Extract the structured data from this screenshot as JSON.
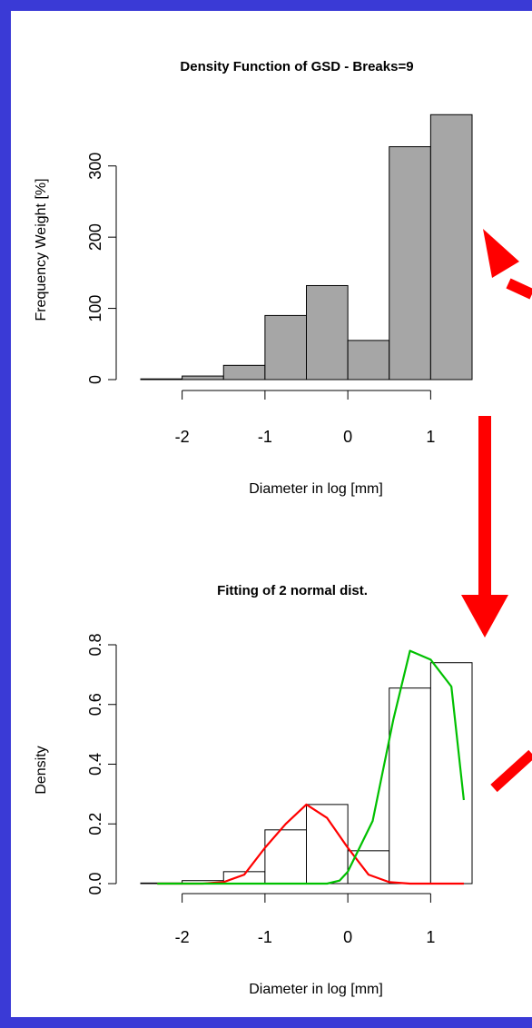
{
  "colors": {
    "frame": "#3a3ad6",
    "bar_fill": "#a6a6a6",
    "arrow": "#ff0000",
    "curve_red": "#ff0000",
    "curve_green": "#00c000"
  },
  "chart_data": [
    {
      "type": "bar",
      "title": "Density Function of GSD - Breaks=9",
      "xlabel": "Diameter in log [mm]",
      "ylabel": "Frequency Weight [%]",
      "x_ticks": [
        "-2",
        "-1",
        "0",
        "1"
      ],
      "y_ticks": [
        "0",
        "100",
        "200",
        "300"
      ],
      "xlim": [
        -2.5,
        1.5
      ],
      "ylim": [
        0,
        380
      ],
      "bins": [
        {
          "x0": -2.5,
          "x1": -2.0,
          "value": 1
        },
        {
          "x0": -2.0,
          "x1": -1.5,
          "value": 5
        },
        {
          "x0": -1.5,
          "x1": -1.0,
          "value": 20
        },
        {
          "x0": -1.0,
          "x1": -0.5,
          "value": 90
        },
        {
          "x0": -0.5,
          "x1": 0.0,
          "value": 132
        },
        {
          "x0": 0.0,
          "x1": 0.5,
          "value": 55
        },
        {
          "x0": 0.5,
          "x1": 1.0,
          "value": 327
        },
        {
          "x0": 1.0,
          "x1": 1.5,
          "value": 372
        }
      ]
    },
    {
      "type": "bar",
      "title": "Fitting of 2 normal dist.",
      "xlabel": "Diameter in log [mm]",
      "ylabel": "Density",
      "x_ticks": [
        "-2",
        "-1",
        "0",
        "1"
      ],
      "y_ticks": [
        "0.0",
        "0.2",
        "0.4",
        "0.6",
        "0.8"
      ],
      "xlim": [
        -2.5,
        1.5
      ],
      "ylim": [
        0,
        0.8
      ],
      "bins": [
        {
          "x0": -2.5,
          "x1": -2.0,
          "value": 0.002
        },
        {
          "x0": -2.0,
          "x1": -1.5,
          "value": 0.01
        },
        {
          "x0": -1.5,
          "x1": -1.0,
          "value": 0.04
        },
        {
          "x0": -1.0,
          "x1": -0.5,
          "value": 0.18
        },
        {
          "x0": -0.5,
          "x1": 0.0,
          "value": 0.265
        },
        {
          "x0": 0.0,
          "x1": 0.5,
          "value": 0.11
        },
        {
          "x0": 0.5,
          "x1": 1.0,
          "value": 0.655
        },
        {
          "x0": 1.0,
          "x1": 1.5,
          "value": 0.74
        }
      ],
      "series": [
        {
          "color": "#ff0000",
          "x": [
            -2.3,
            -2.0,
            -1.75,
            -1.5,
            -1.25,
            -1.0,
            -0.75,
            -0.5,
            -0.25,
            0.0,
            0.25,
            0.5,
            0.75,
            1.0,
            1.25,
            1.4
          ],
          "y": [
            0.0,
            0.0,
            0.0,
            0.005,
            0.03,
            0.12,
            0.2,
            0.265,
            0.22,
            0.12,
            0.03,
            0.005,
            0.0,
            0.0,
            0.0,
            0.0
          ]
        },
        {
          "color": "#00c000",
          "x": [
            -2.3,
            -2.0,
            -1.75,
            -1.5,
            -1.25,
            -1.0,
            -0.75,
            -0.5,
            -0.25,
            -0.1,
            0.0,
            0.3,
            0.55,
            0.75,
            1.0,
            1.25,
            1.4
          ],
          "y": [
            0.0,
            0.0,
            0.0,
            0.0,
            0.0,
            0.0,
            0.0,
            0.0,
            0.0,
            0.01,
            0.04,
            0.21,
            0.55,
            0.78,
            0.75,
            0.66,
            0.28
          ]
        }
      ]
    }
  ]
}
